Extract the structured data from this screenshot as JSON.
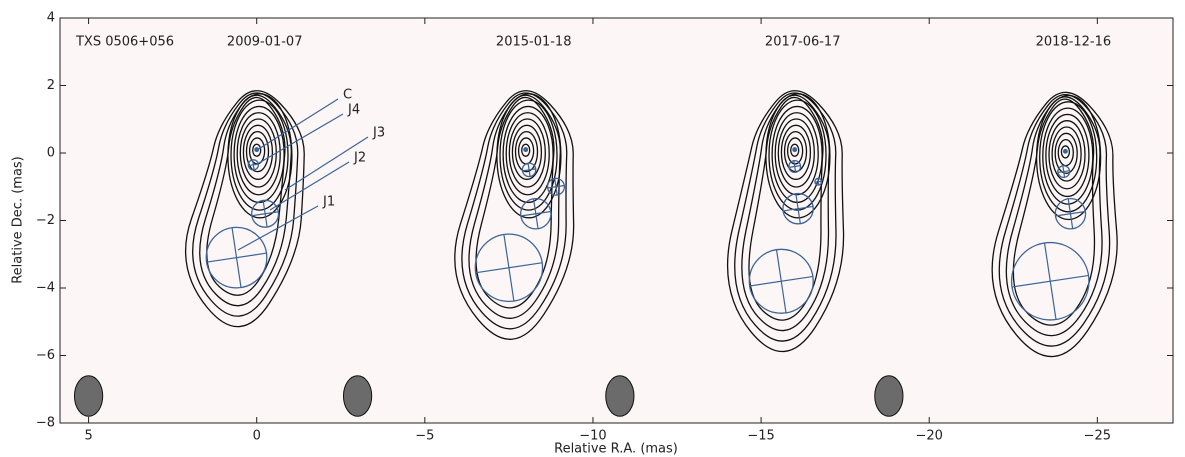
{
  "chart_data": {
    "type": "contour",
    "source_label": "TXS 0506+056",
    "x_label": "Relative R.A. (mas)",
    "y_label": "Relative Dec. (mas)",
    "xlim": [
      5.85,
      -27.25
    ],
    "ylim": [
      -8,
      4
    ],
    "xticks": [
      5,
      0,
      {
        "value": -5,
        "label": "−5"
      },
      {
        "value": -10,
        "label": "−10"
      },
      {
        "value": -15,
        "label": "−15"
      },
      {
        "value": -20,
        "label": "−20"
      },
      {
        "value": -25,
        "label": "−25"
      }
    ],
    "yticks": [
      {
        "value": -8,
        "label": "−8"
      },
      {
        "value": -6,
        "label": "−6"
      },
      {
        "value": -4,
        "label": "−4"
      },
      {
        "value": -2,
        "label": "−2"
      },
      0,
      2,
      4
    ],
    "component_color": "#3d6496",
    "series": [
      {
        "name": "2009-01-07",
        "x": [
          0,
          0.1,
          -0.25,
          0.6
        ],
        "y": [
          0.1,
          -0.35,
          -1.8,
          -3.1
        ],
        "size": [
          0.1,
          0.3,
          0.8,
          1.8
        ]
      },
      {
        "name": "2015-01-18",
        "x": [
          -8.0,
          -8.1,
          -8.9,
          -8.3,
          -7.5
        ],
        "y": [
          0.1,
          -0.5,
          -1.0,
          -1.8,
          -3.4
        ],
        "size": [
          0.1,
          0.4,
          0.5,
          0.9,
          2.0
        ]
      },
      {
        "name": "2017-06-17",
        "x": [
          -16.0,
          -16.0,
          -16.7,
          -16.1,
          -15.6
        ],
        "y": [
          0.1,
          -0.4,
          -0.85,
          -1.65,
          -3.8
        ],
        "size": [
          0.1,
          0.35,
          0.2,
          0.9,
          1.9
        ]
      },
      {
        "name": "2018-12-16",
        "x": [
          -24.05,
          -24.0,
          -24.2,
          -23.6
        ],
        "y": [
          0.05,
          -0.55,
          -1.8,
          -3.8
        ],
        "size": [
          0.1,
          0.35,
          0.9,
          2.3
        ]
      }
    ],
    "component_labels": [
      "C",
      "J4",
      "J3",
      "J2",
      "J1"
    ],
    "beam": {
      "x": [
        5,
        -3,
        -10.8,
        -18.8
      ],
      "y": -7.2,
      "width": 0.6,
      "height": 1.2,
      "color": "#6b6b6b"
    }
  }
}
